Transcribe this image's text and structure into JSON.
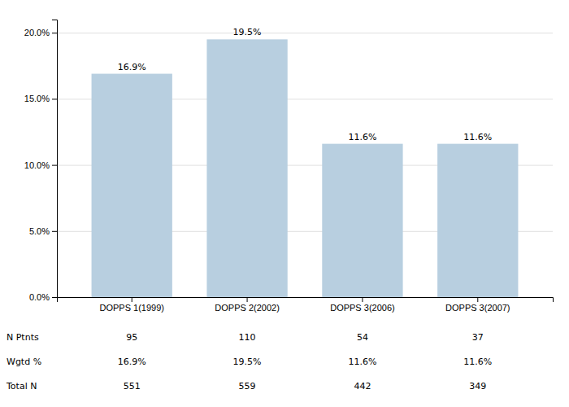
{
  "chart_data": {
    "type": "bar",
    "categories": [
      "DOPPS 1(1999)",
      "DOPPS 2(2002)",
      "DOPPS 3(2006)",
      "DOPPS 3(2007)"
    ],
    "values": [
      16.9,
      19.5,
      11.6,
      11.6
    ],
    "value_labels": [
      "16.9%",
      "19.5%",
      "11.6%",
      "11.6%"
    ],
    "data_labels": true,
    "color": "#b8cfe0",
    "ylim": [
      0,
      21
    ],
    "yticks": [
      {
        "value": 0,
        "label": "0.0%"
      },
      {
        "value": 5,
        "label": "5.0%"
      },
      {
        "value": 10,
        "label": "10.0%"
      },
      {
        "value": 15,
        "label": "15.0%"
      },
      {
        "value": 20,
        "label": "20.0%"
      }
    ],
    "grid": true,
    "table": {
      "rows": [
        "N Ptnts",
        "Wgtd %",
        "Total N"
      ],
      "data": [
        [
          "95",
          "110",
          "54",
          "37"
        ],
        [
          "16.9%",
          "19.5%",
          "11.6%",
          "11.6%"
        ],
        [
          "551",
          "559",
          "442",
          "349"
        ]
      ]
    }
  }
}
